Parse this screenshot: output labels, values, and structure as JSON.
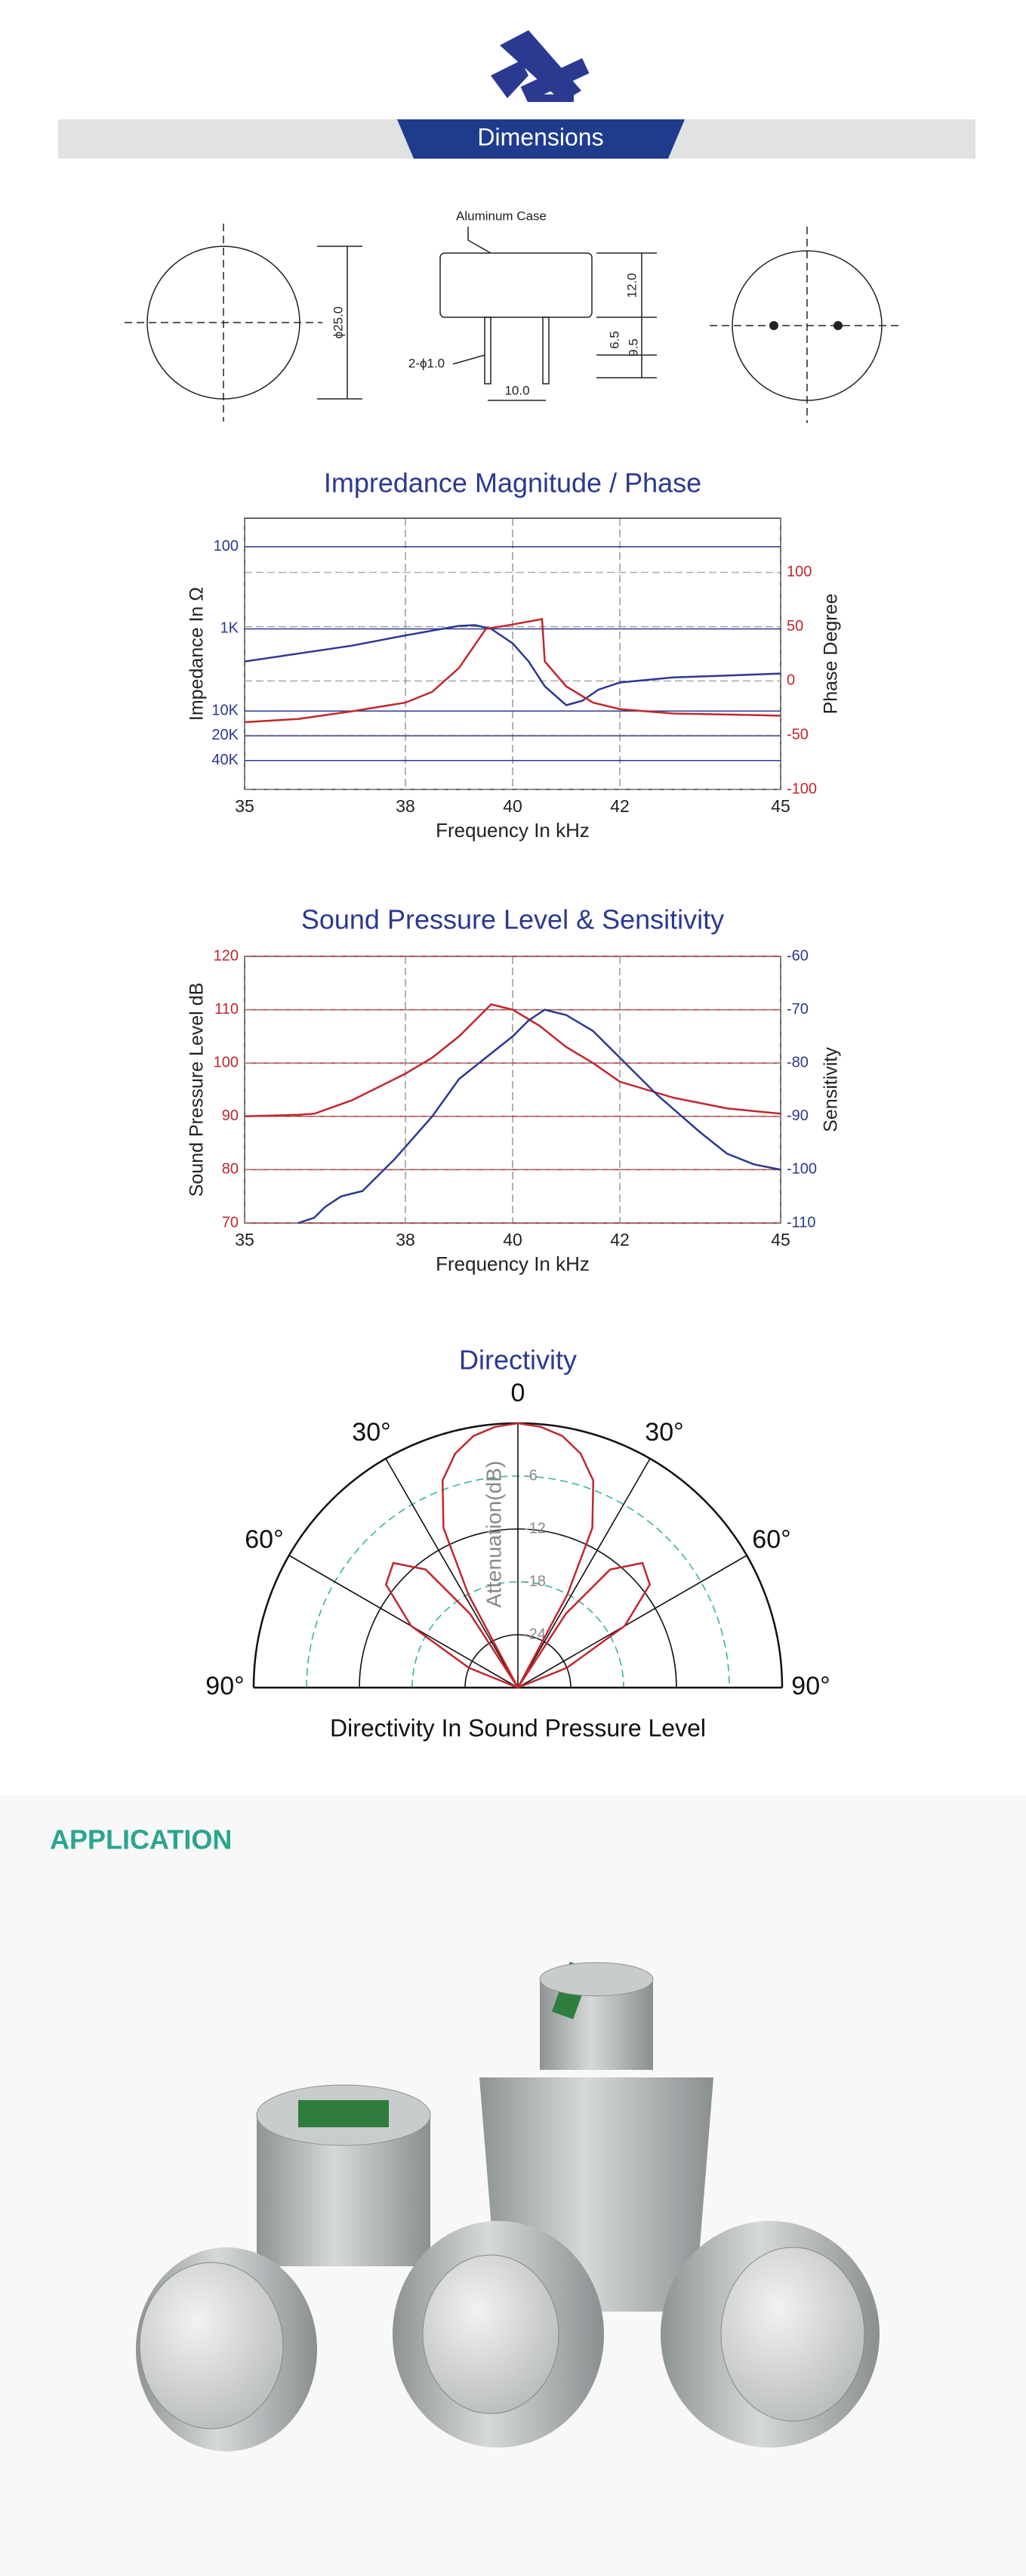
{
  "header": {
    "title": "Dimensions"
  },
  "dimensions": {
    "case_label": "Aluminum Case",
    "diameter": "ϕ25.0",
    "pins": "2-ϕ1.0",
    "pin_spacing": "10.0",
    "height": "12.0",
    "pin_a": "6.5",
    "pin_b": "9.5"
  },
  "chart_data": [
    {
      "type": "line",
      "title": "Impredance Magnitude / Phase",
      "x_label": "Frequency In kHz",
      "y_label": "Impedance In Ω",
      "y2_label": "Phase Degree",
      "xlim": [
        35,
        45
      ],
      "xticks": [
        35,
        38,
        40,
        42,
        45
      ],
      "yscale": "log",
      "ylim": [
        90000,
        45
      ],
      "yticks": [
        100,
        {
          "value": 1000,
          "label": "1K"
        },
        {
          "value": 10000,
          "label": "10K"
        },
        {
          "value": 20000,
          "label": "20K"
        },
        {
          "value": 40000,
          "label": "40K"
        }
      ],
      "y2lim": [
        -100,
        150
      ],
      "y2ticks": [
        -100,
        -50,
        0,
        50,
        100
      ],
      "y_color": "#2b3990",
      "y2_color": "#c1272d",
      "grid": true,
      "series": [
        {
          "color": "#2b3990",
          "x": [
            35,
            36,
            37,
            38,
            38.5,
            39,
            39.3,
            39.6,
            40,
            40.3,
            40.6,
            41,
            41.3,
            41.6,
            42,
            43,
            44,
            45
          ],
          "values": [
            2500,
            2000,
            1600,
            1200,
            1050,
            920,
            900,
            1000,
            1500,
            2500,
            5000,
            8500,
            7500,
            5500,
            4500,
            3900,
            3700,
            3500
          ]
        },
        {
          "color": "#c1272d",
          "axis": "y2",
          "x": [
            35,
            36,
            37,
            38,
            38.5,
            39,
            39.5,
            40,
            40.55,
            40.6,
            41,
            41.5,
            42,
            43,
            44,
            45
          ],
          "values": [
            -38,
            -35,
            -28,
            -20,
            -10,
            12,
            48,
            52,
            57,
            18,
            -5,
            -20,
            -26,
            -30,
            -31,
            -32
          ]
        }
      ]
    },
    {
      "type": "line",
      "title": "Sound Pressure Level & Sensitivity",
      "x_label": "Frequency In kHz",
      "y_label": "Sound Pressure Level dB",
      "y2_label": "Sensitivity",
      "xlim": [
        35,
        45
      ],
      "xticks": [
        35,
        38,
        40,
        42,
        45
      ],
      "ylim": [
        70,
        120
      ],
      "yticks": [
        70,
        80,
        90,
        100,
        110,
        120
      ],
      "y2lim": [
        -110,
        -60
      ],
      "y2ticks": [
        -110,
        -100,
        -90,
        -80,
        -70,
        -60
      ],
      "y_color": "#c1272d",
      "y2_color": "#2b3990",
      "grid": true,
      "series": [
        {
          "color": "#c1272d",
          "x": [
            35,
            36,
            36.3,
            37,
            38,
            38.5,
            39,
            39.3,
            39.6,
            40,
            40.5,
            41,
            41.5,
            42,
            43,
            44,
            45
          ],
          "values": [
            90,
            90.3,
            90.5,
            93,
            98,
            101,
            105,
            108,
            111,
            110,
            107,
            103,
            100,
            96.5,
            93.5,
            91.5,
            90.5
          ]
        },
        {
          "color": "#2b3990",
          "axis": "y2",
          "x": [
            36,
            36.3,
            36.5,
            36.8,
            37.2,
            37.8,
            38.5,
            39,
            39.5,
            40,
            40.3,
            40.6,
            41,
            41.5,
            42,
            42.7,
            43.5,
            44,
            44.5,
            45
          ],
          "values": [
            -110,
            -109,
            -107,
            -105,
            -104,
            -98,
            -90,
            -83,
            -79,
            -75,
            -72,
            -70,
            -71,
            -74,
            -79,
            -86,
            -93,
            -97,
            -99,
            -100
          ]
        }
      ]
    },
    {
      "type": "polar",
      "title": "Directivity",
      "x_label": "Directivity In Sound Pressure Level",
      "r_label": "Attenuation(dB)",
      "thetaticks": [
        {
          "value": -90,
          "label": "90°"
        },
        {
          "value": -60,
          "label": "60°"
        },
        {
          "value": -30,
          "label": "30°"
        },
        0,
        {
          "value": 30,
          "label": "30°"
        },
        {
          "value": 60,
          "label": "60°"
        },
        {
          "value": 90,
          "label": "90°"
        }
      ],
      "rlim": [
        -30,
        0
      ],
      "rticks": [
        -6,
        -12,
        -18,
        -24
      ],
      "color": "#c1272d",
      "theta": [
        -72,
        -68,
        -60,
        -52,
        -45,
        -38,
        -33,
        -30,
        -28,
        -25,
        -20,
        -15,
        -10,
        -5,
        0,
        5,
        10,
        15,
        20,
        25,
        28,
        30,
        33,
        38,
        45,
        52,
        60,
        68,
        72
      ],
      "values": [
        -30,
        -24,
        -16,
        -11,
        -10,
        -13,
        -20,
        -30,
        -18,
        -10,
        -5,
        -2.5,
        -1,
        -0.3,
        0,
        -0.3,
        -1,
        -2.5,
        -5,
        -10,
        -18,
        -30,
        -20,
        -13,
        -10,
        -11,
        -16,
        -24,
        -30
      ]
    }
  ],
  "application": {
    "title": "APPLICATION"
  }
}
